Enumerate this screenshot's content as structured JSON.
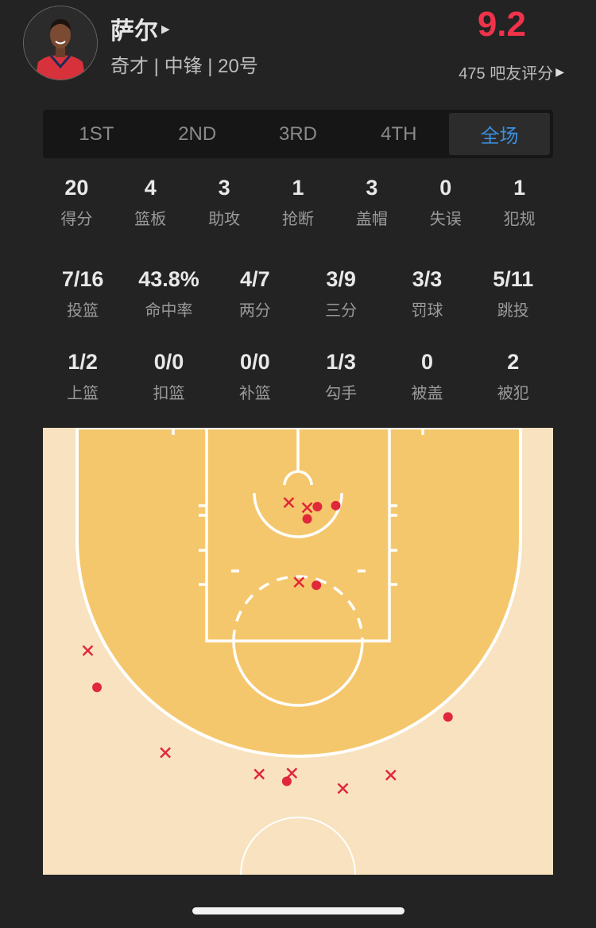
{
  "player": {
    "name": "萨尔",
    "info": "奇才 | 中锋 | 20号",
    "rating": "9.2",
    "rating_count_label": "475 吧友评分",
    "rating_color": "#f0334a"
  },
  "tabs": [
    {
      "label": "1ST",
      "active": false
    },
    {
      "label": "2ND",
      "active": false
    },
    {
      "label": "3RD",
      "active": false
    },
    {
      "label": "4TH",
      "active": false
    },
    {
      "label": "全场",
      "active": true
    }
  ],
  "stats_main": [
    {
      "value": "20",
      "label": "得分"
    },
    {
      "value": "4",
      "label": "篮板"
    },
    {
      "value": "3",
      "label": "助攻"
    },
    {
      "value": "1",
      "label": "抢断"
    },
    {
      "value": "3",
      "label": "盖帽"
    },
    {
      "value": "0",
      "label": "失误"
    },
    {
      "value": "1",
      "label": "犯规"
    }
  ],
  "stats_shooting": [
    {
      "value": "7/16",
      "label": "投篮"
    },
    {
      "value": "43.8%",
      "label": "命中率"
    },
    {
      "value": "4/7",
      "label": "两分"
    },
    {
      "value": "3/9",
      "label": "三分"
    },
    {
      "value": "3/3",
      "label": "罚球"
    },
    {
      "value": "5/11",
      "label": "跳投"
    }
  ],
  "stats_detail": [
    {
      "value": "1/2",
      "label": "上篮"
    },
    {
      "value": "0/0",
      "label": "扣篮"
    },
    {
      "value": "0/0",
      "label": "补篮"
    },
    {
      "value": "1/3",
      "label": "勾手"
    },
    {
      "value": "0",
      "label": "被盖"
    },
    {
      "value": "2",
      "label": "被犯"
    }
  ],
  "chart_data": {
    "type": "scatter",
    "description_units": "feet from basket (x lateral, y toward half court)",
    "colors": {
      "paint_area": "#f5c76c",
      "outer_area": "#f8e2bf",
      "shot": "#e0283a"
    },
    "shots": [
      {
        "x": 1.9,
        "y": 2.5,
        "made": true
      },
      {
        "x": 3.7,
        "y": 2.4,
        "made": true
      },
      {
        "x": 0.9,
        "y": 3.7,
        "made": true
      },
      {
        "x": 1.8,
        "y": 10.2,
        "made": true
      },
      {
        "x": -19.7,
        "y": 20.2,
        "made": true
      },
      {
        "x": 14.7,
        "y": 23.1,
        "made": true
      },
      {
        "x": -1.1,
        "y": 29.4,
        "made": true
      },
      {
        "x": -0.9,
        "y": 2.1,
        "made": false
      },
      {
        "x": 0.9,
        "y": 2.6,
        "made": false
      },
      {
        "x": 0.1,
        "y": 9.9,
        "made": false
      },
      {
        "x": -20.6,
        "y": 16.6,
        "made": false
      },
      {
        "x": -13.0,
        "y": 26.6,
        "made": false
      },
      {
        "x": -3.8,
        "y": 28.7,
        "made": false
      },
      {
        "x": -0.6,
        "y": 28.6,
        "made": false
      },
      {
        "x": 4.4,
        "y": 30.1,
        "made": false
      },
      {
        "x": 9.1,
        "y": 28.8,
        "made": false
      }
    ]
  }
}
